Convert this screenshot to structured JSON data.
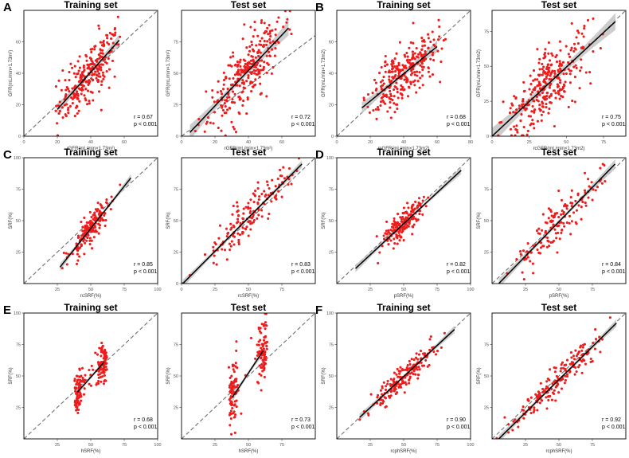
{
  "colors": {
    "point": "#ee1c1c",
    "fit": "#000000",
    "band": "#c4c4c4",
    "identity": "#707070",
    "frame": "#000000"
  },
  "panel_letters": [
    "A",
    "B",
    "C",
    "D",
    "E",
    "F"
  ],
  "chart_data": [
    {
      "type": "scatter",
      "title": "Training set",
      "xlabel": "rGFR(mL/min×1.73m²)",
      "ylabel": "GFR(mL/min×1.73m²)",
      "xlim": [
        0,
        80
      ],
      "ylim": [
        0,
        80
      ],
      "xticks": [
        0,
        20,
        40,
        60
      ],
      "yticks": [
        0,
        20,
        40,
        60
      ],
      "r_text": "r = 0.67",
      "p_text": "p < 0.001",
      "fit": {
        "x": [
          20,
          57
        ],
        "y": [
          17,
          61
        ]
      },
      "band": 2.5,
      "n": 260,
      "x_mean": 40,
      "x_sd": 9,
      "x_range": [
        19,
        58
      ],
      "y_sd": 10,
      "seed": 11
    },
    {
      "type": "scatter",
      "title": "Test set",
      "xlabel": "rGFR(mL/min×1.73m²)",
      "ylabel": "GFR(mL/min×1.73m²)",
      "xlim": [
        0,
        80
      ],
      "ylim": [
        0,
        100
      ],
      "xticks": [
        0,
        20,
        40,
        60
      ],
      "yticks": [
        0,
        25,
        50,
        75
      ],
      "r_text": "r = 0.72",
      "p_text": "p < 0.001",
      "fit": {
        "x": [
          5,
          64
        ],
        "y": [
          3,
          86
        ]
      },
      "band": 4,
      "n": 280,
      "x_mean": 38,
      "x_sd": 11,
      "x_range": [
        3,
        70
      ],
      "y_sd": 13,
      "seed": 23
    },
    {
      "type": "scatter",
      "title": "Training set",
      "xlabel": "rcGFR(mL/min×1.73m2)",
      "ylabel": "GFR(mL/min×1.73m2)",
      "xlim": [
        0,
        80
      ],
      "ylim": [
        0,
        80
      ],
      "xticks": [
        0,
        20,
        40,
        60,
        80
      ],
      "yticks": [
        0,
        20,
        40,
        60
      ],
      "r_text": "r = 0.68",
      "p_text": "p < 0.001",
      "fit": {
        "x": [
          15,
          60
        ],
        "y": [
          18,
          57
        ]
      },
      "band": 2.5,
      "n": 280,
      "x_mean": 40,
      "x_sd": 10,
      "x_range": [
        12,
        66
      ],
      "y_sd": 9,
      "seed": 37
    },
    {
      "type": "scatter",
      "title": "Test set",
      "xlabel": "rcGFR(mL/min×1.73m2)",
      "ylabel": "GFR(mL/min×1.73m2)",
      "xlim": [
        0,
        90
      ],
      "ylim": [
        0,
        90
      ],
      "xticks": [
        0,
        25,
        50,
        75
      ],
      "yticks": [
        0,
        25,
        50,
        75
      ],
      "r_text": "r = 0.75",
      "p_text": "p < 0.001",
      "fit": {
        "x": [
          0,
          83
        ],
        "y": [
          0,
          82
        ]
      },
      "band": 4,
      "n": 300,
      "x_mean": 38,
      "x_sd": 14,
      "x_range": [
        1,
        82
      ],
      "y_sd": 12,
      "seed": 41
    },
    {
      "type": "scatter",
      "title": "Training set",
      "xlabel": "rcSRF(%)",
      "ylabel": "SRF(%)",
      "xlim": [
        0,
        100
      ],
      "ylim": [
        0,
        100
      ],
      "xticks": [
        25,
        50,
        75,
        100
      ],
      "yticks": [
        25,
        50,
        75,
        100
      ],
      "r_text": "r = 0.85",
      "p_text": "p < 0.001",
      "fit": {
        "x": [
          27,
          80
        ],
        "y": [
          13,
          84
        ]
      },
      "band": 2,
      "n": 180,
      "x_mean": 50,
      "x_sd": 8,
      "x_range": [
        22,
        80
      ],
      "y_sd": 6,
      "seed": 53
    },
    {
      "type": "scatter",
      "title": "Test set",
      "xlabel": "rcSRF(%)",
      "ylabel": "SRF(%)",
      "xlim": [
        0,
        100
      ],
      "ylim": [
        0,
        100
      ],
      "xticks": [
        0,
        25,
        50,
        75
      ],
      "yticks": [
        0,
        25,
        50,
        75
      ],
      "r_text": "r = 0.83",
      "p_text": "p < 0.001",
      "fit": {
        "x": [
          1,
          90
        ],
        "y": [
          0,
          95
        ]
      },
      "band": 2,
      "n": 150,
      "x_mean": 50,
      "x_sd": 15,
      "x_range": [
        2,
        95
      ],
      "y_sd": 8,
      "seed": 67
    },
    {
      "type": "scatter",
      "title": "Training set",
      "xlabel": "pSRF(%)",
      "ylabel": "SRF(%)",
      "xlim": [
        0,
        100
      ],
      "ylim": [
        0,
        100
      ],
      "xticks": [
        25,
        50,
        75,
        100
      ],
      "yticks": [
        25,
        50,
        75,
        100
      ],
      "r_text": "r = 0.82",
      "p_text": "p < 0.001",
      "fit": {
        "x": [
          14,
          93
        ],
        "y": [
          12,
          90
        ]
      },
      "band": 2,
      "n": 180,
      "x_mean": 50,
      "x_sd": 9,
      "x_range": [
        15,
        93
      ],
      "y_sd": 6,
      "seed": 71
    },
    {
      "type": "scatter",
      "title": "Test set",
      "xlabel": "pSRF(%)",
      "ylabel": "SRF(%)",
      "xlim": [
        0,
        100
      ],
      "ylim": [
        0,
        100
      ],
      "xticks": [
        25,
        50,
        75
      ],
      "yticks": [
        25,
        50,
        75
      ],
      "r_text": "r = 0.84",
      "p_text": "p < 0.001",
      "fit": {
        "x": [
          5,
          92
        ],
        "y": [
          0,
          95
        ]
      },
      "band": 2.5,
      "n": 150,
      "x_mean": 50,
      "x_sd": 16,
      "x_range": [
        3,
        92
      ],
      "y_sd": 8,
      "seed": 79
    },
    {
      "type": "scatter",
      "title": "Training set",
      "xlabel": "hSRF(%)",
      "ylabel": "SRF(%)",
      "xlim": [
        0,
        100
      ],
      "ylim": [
        0,
        100
      ],
      "xticks": [
        25,
        50,
        75,
        100
      ],
      "yticks": [
        25,
        50,
        75,
        100
      ],
      "r_text": "r = 0.68",
      "p_text": "p < 0.001",
      "fit": {
        "x": [
          40,
          60
        ],
        "y": [
          37,
          61
        ]
      },
      "band": 2,
      "clusters": [
        40,
        60
      ],
      "n": 180,
      "x_mean": 50,
      "x_sd": 2,
      "x_range": [
        38,
        62
      ],
      "y_sd": 8,
      "seed": 83
    },
    {
      "type": "scatter",
      "title": "Test set",
      "xlabel": "hSRF(%)",
      "ylabel": "SRF(%)",
      "xlim": [
        0,
        100
      ],
      "ylim": [
        0,
        100
      ],
      "xticks": [
        25,
        50,
        75
      ],
      "yticks": [
        25,
        50,
        75
      ],
      "r_text": "r = 0.73",
      "p_text": "p < 0.001",
      "fit": {
        "x": [
          38,
          61
        ],
        "y": [
          33,
          70
        ]
      },
      "band": 2.5,
      "clusters": [
        38,
        61
      ],
      "n": 170,
      "x_mean": 50,
      "x_sd": 2,
      "x_range": [
        35,
        64
      ],
      "y_sd": 14,
      "seed": 97
    },
    {
      "type": "scatter",
      "title": "Training set",
      "xlabel": "rcphSRF(%)",
      "ylabel": "SRF(%)",
      "xlim": [
        0,
        100
      ],
      "ylim": [
        0,
        100
      ],
      "xticks": [
        25,
        50,
        75,
        100
      ],
      "yticks": [
        25,
        50,
        75,
        100
      ],
      "r_text": "r = 0.90",
      "p_text": "p < 0.001",
      "fit": {
        "x": [
          17,
          88
        ],
        "y": [
          17,
          87
        ]
      },
      "band": 2,
      "n": 180,
      "x_mean": 50,
      "x_sd": 12,
      "x_range": [
        15,
        92
      ],
      "y_sd": 5,
      "seed": 101
    },
    {
      "type": "scatter",
      "title": "Test set",
      "xlabel": "rcphSRF(%)",
      "ylabel": "SRF(%)",
      "xlim": [
        0,
        100
      ],
      "ylim": [
        0,
        100
      ],
      "xticks": [
        25,
        50,
        75
      ],
      "yticks": [
        25,
        50,
        75
      ],
      "r_text": "r = 0.92",
      "p_text": "p < 0.001",
      "fit": {
        "x": [
          5,
          93
        ],
        "y": [
          0,
          92
        ]
      },
      "band": 2,
      "n": 170,
      "x_mean": 50,
      "x_sd": 17,
      "x_range": [
        1,
        92
      ],
      "y_sd": 6,
      "seed": 113
    }
  ]
}
